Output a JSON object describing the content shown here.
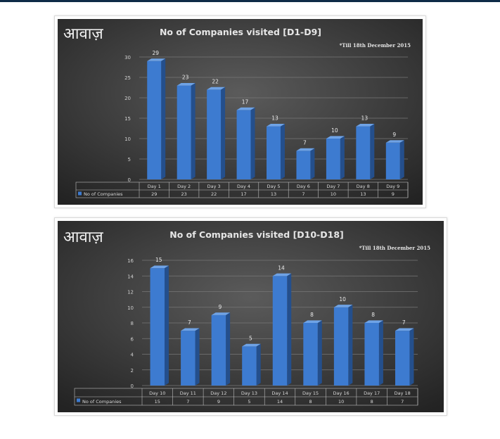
{
  "chart_data": [
    {
      "type": "bar",
      "logo": "आवाज़",
      "title": "No of Companies  visited  [D1-D9]",
      "subtitle": "*Till 18th December 2015",
      "categories": [
        "Day 1",
        "Day 2",
        "Day 3",
        "Day 4",
        "Day 5",
        "Day 6",
        "Day 7",
        "Day 8",
        "Day 9"
      ],
      "series": [
        {
          "name": "No of Companies",
          "values": [
            29,
            23,
            22,
            17,
            13,
            7,
            10,
            13,
            9
          ]
        }
      ],
      "ylim": [
        0,
        30
      ],
      "yticks": [
        0,
        5,
        10,
        15,
        20,
        25,
        30
      ],
      "grid": true,
      "legend": "data-table",
      "bar_color": "#3d7bd0"
    },
    {
      "type": "bar",
      "logo": "आवाज़",
      "title": "No of Companies  visited  [D10-D18]",
      "subtitle": "*Till 18th December 2015",
      "categories": [
        "Day 10",
        "Day 11",
        "Day 12",
        "Day 13",
        "Day 14",
        "Day 15",
        "Day 16",
        "Day 17",
        "Day 18"
      ],
      "series": [
        {
          "name": "No of Companies",
          "values": [
            15,
            7,
            9,
            5,
            14,
            8,
            10,
            8,
            7
          ]
        }
      ],
      "ylim": [
        0,
        16
      ],
      "yticks": [
        0,
        2,
        4,
        6,
        8,
        10,
        12,
        14,
        16
      ],
      "grid": true,
      "legend": "data-table",
      "bar_color": "#3d7bd0"
    }
  ]
}
